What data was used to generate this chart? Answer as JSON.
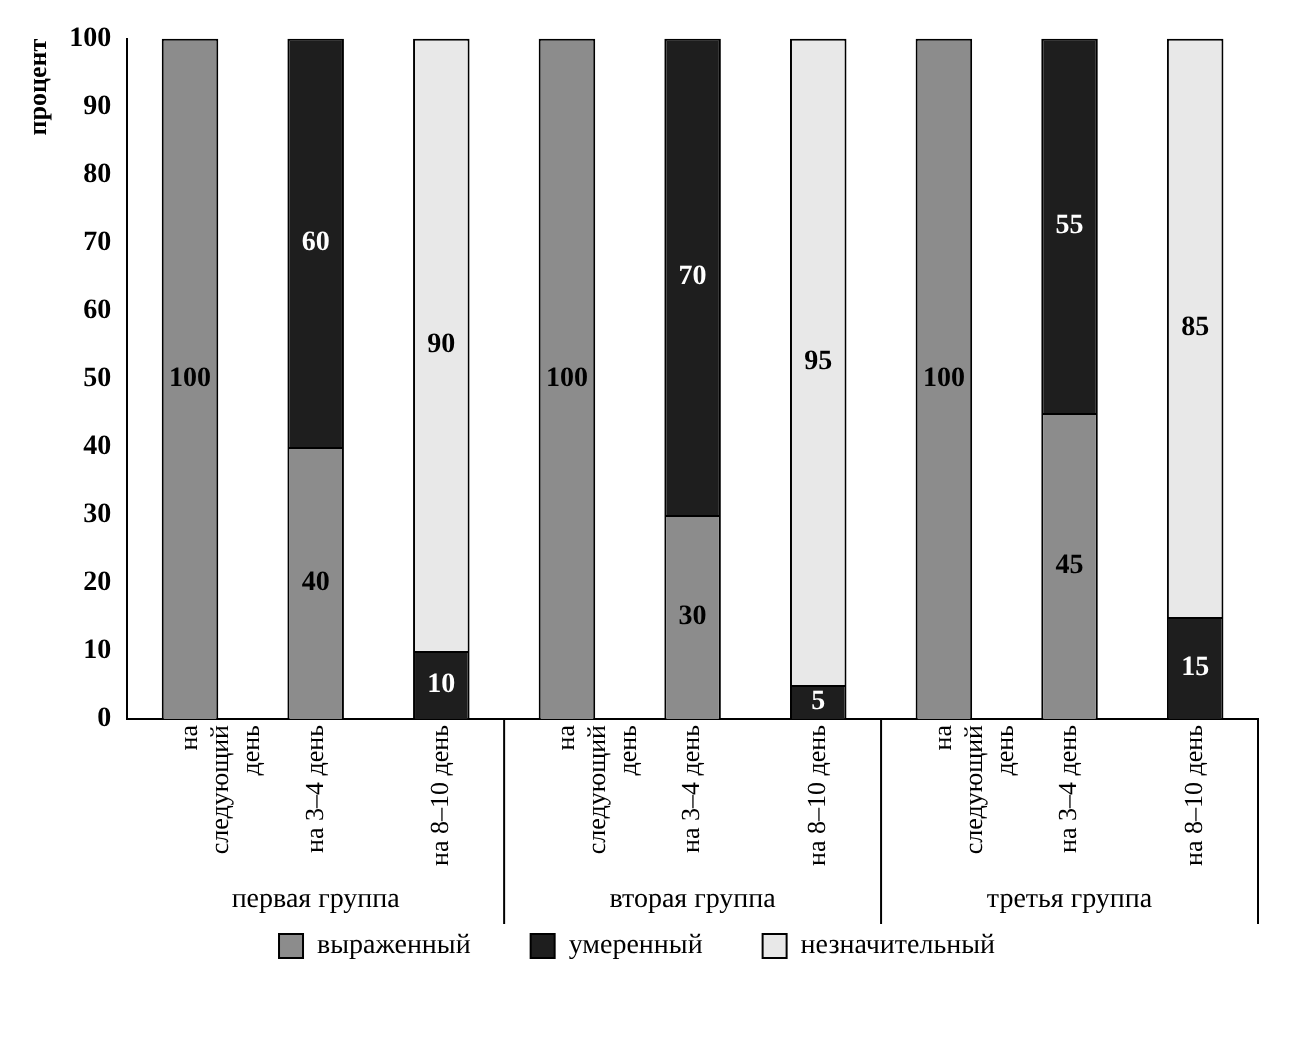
{
  "chart_data": {
    "type": "bar",
    "stacked": true,
    "ylabel": "процент",
    "categories": [
      "на следующий день",
      "на 3–4 день",
      "на 8–10 день",
      "на следующий день",
      "на 3–4 день",
      "на 8–10 день",
      "на следующий день",
      "на 3–4 день",
      "на 8–10 день"
    ],
    "annotations": [
      "первая группа",
      "вторая группа",
      "третья группа"
    ],
    "series": [
      {
        "name": "выраженный",
        "color": "#8c8c8c",
        "values": [
          100,
          40,
          0,
          100,
          30,
          0,
          100,
          45,
          0
        ],
        "value_labels": [
          "100",
          "40",
          null,
          "100",
          "30",
          null,
          "100",
          "45",
          null
        ]
      },
      {
        "name": "умеренный",
        "color": "#1e1e1e",
        "values": [
          0,
          60,
          10,
          0,
          70,
          5,
          0,
          55,
          15
        ],
        "value_labels": [
          null,
          "60",
          "10",
          null,
          "70",
          "5",
          null,
          "55",
          "15"
        ]
      },
      {
        "name": "незначительный",
        "color": "#e8e8e8",
        "values": [
          0,
          0,
          90,
          0,
          0,
          95,
          0,
          0,
          85
        ],
        "value_labels": [
          null,
          null,
          "90",
          null,
          null,
          "95",
          null,
          null,
          "85"
        ]
      }
    ],
    "ylim": [
      0,
      100
    ],
    "yticks": [
      0,
      10,
      20,
      30,
      40,
      50,
      60,
      70,
      80,
      90,
      100
    ],
    "grid": false,
    "legend": "bottom"
  }
}
